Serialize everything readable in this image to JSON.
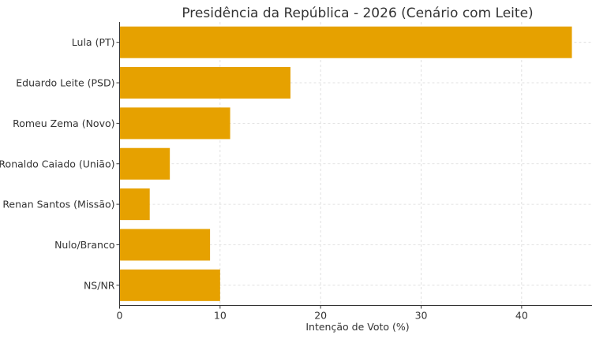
{
  "chart_data": {
    "type": "bar",
    "orientation": "horizontal",
    "title": "Presidência da República - 2026 (Cenário com Leite)",
    "xlabel": "Intenção de Voto (%)",
    "ylabel": "",
    "categories": [
      "Lula (PT)",
      "Eduardo Leite (PSD)",
      "Romeu Zema (Novo)",
      "Ronaldo Caiado (União)",
      "Renan Santos (Missão)",
      "Nulo/Branco",
      "NS/NR"
    ],
    "values": [
      45,
      17,
      11,
      5,
      3,
      9,
      10
    ],
    "xticks": [
      "0",
      "10",
      "20",
      "30",
      "40"
    ],
    "xlim": [
      0,
      47
    ],
    "grid": true,
    "bar_color": "#E6A100"
  }
}
